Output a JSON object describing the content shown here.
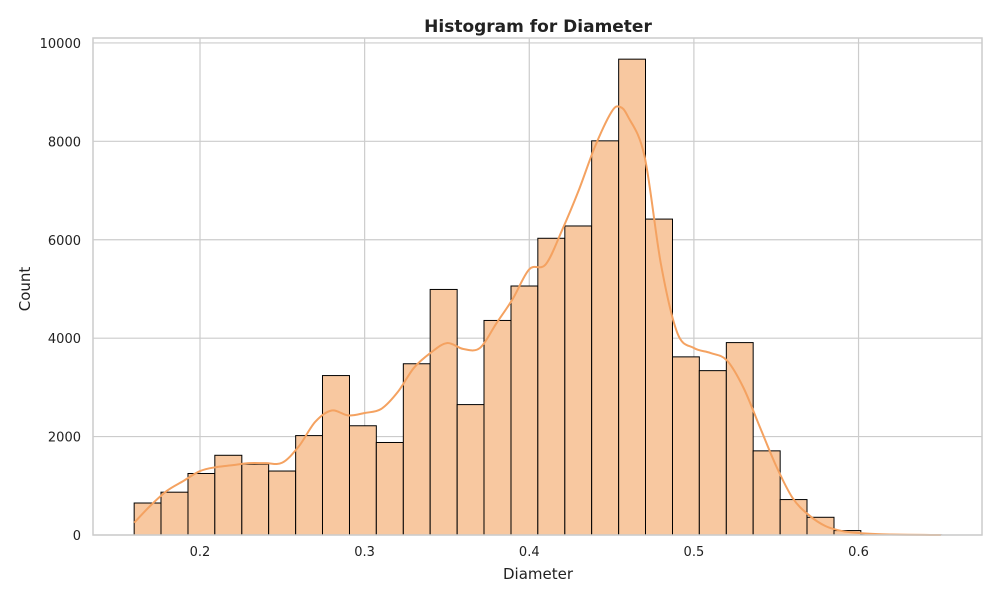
{
  "chart_data": {
    "type": "bar",
    "title": "Histogram for Diameter",
    "xlabel": "Diameter",
    "ylabel": "Count",
    "xlim": [
      0.135,
      0.675
    ],
    "ylim": [
      0,
      10100
    ],
    "x_ticks": [
      0.2,
      0.3,
      0.4,
      0.5,
      0.6
    ],
    "x_tick_labels": [
      "0.2",
      "0.3",
      "0.4",
      "0.5",
      "0.6"
    ],
    "y_ticks": [
      0,
      2000,
      4000,
      6000,
      8000,
      10000
    ],
    "y_tick_labels": [
      "0",
      "2000",
      "4000",
      "6000",
      "8000",
      "10000"
    ],
    "grid": true,
    "bins": [
      {
        "x0": 0.16,
        "x1": 0.1763,
        "count": 650
      },
      {
        "x0": 0.1763,
        "x1": 0.1927,
        "count": 870
      },
      {
        "x0": 0.1927,
        "x1": 0.209,
        "count": 1250
      },
      {
        "x0": 0.209,
        "x1": 0.2254,
        "count": 1620
      },
      {
        "x0": 0.2254,
        "x1": 0.2417,
        "count": 1440
      },
      {
        "x0": 0.2417,
        "x1": 0.2581,
        "count": 1300
      },
      {
        "x0": 0.2581,
        "x1": 0.2744,
        "count": 2020
      },
      {
        "x0": 0.2744,
        "x1": 0.2908,
        "count": 3240
      },
      {
        "x0": 0.2908,
        "x1": 0.3071,
        "count": 2220
      },
      {
        "x0": 0.3071,
        "x1": 0.3235,
        "count": 1880
      },
      {
        "x0": 0.3235,
        "x1": 0.3398,
        "count": 3480
      },
      {
        "x0": 0.3398,
        "x1": 0.3562,
        "count": 4990
      },
      {
        "x0": 0.3562,
        "x1": 0.3725,
        "count": 2650
      },
      {
        "x0": 0.3725,
        "x1": 0.3889,
        "count": 4360
      },
      {
        "x0": 0.3889,
        "x1": 0.4052,
        "count": 5060
      },
      {
        "x0": 0.4052,
        "x1": 0.4216,
        "count": 6030
      },
      {
        "x0": 0.4216,
        "x1": 0.4379,
        "count": 6280
      },
      {
        "x0": 0.4379,
        "x1": 0.4543,
        "count": 8010
      },
      {
        "x0": 0.4543,
        "x1": 0.4706,
        "count": 9670
      },
      {
        "x0": 0.4706,
        "x1": 0.487,
        "count": 6420
      },
      {
        "x0": 0.487,
        "x1": 0.5033,
        "count": 3620
      },
      {
        "x0": 0.5033,
        "x1": 0.5197,
        "count": 3340
      },
      {
        "x0": 0.5197,
        "x1": 0.536,
        "count": 3910
      },
      {
        "x0": 0.536,
        "x1": 0.5524,
        "count": 1710
      },
      {
        "x0": 0.5524,
        "x1": 0.5687,
        "count": 720
      },
      {
        "x0": 0.5687,
        "x1": 0.5851,
        "count": 360
      },
      {
        "x0": 0.5851,
        "x1": 0.6014,
        "count": 90
      },
      {
        "x0": 0.6014,
        "x1": 0.6178,
        "count": 20
      },
      {
        "x0": 0.6178,
        "x1": 0.6341,
        "count": 5
      },
      {
        "x0": 0.6341,
        "x1": 0.6505,
        "count": 2
      }
    ],
    "kde": {
      "x": [
        0.16,
        0.17,
        0.18,
        0.19,
        0.2,
        0.21,
        0.22,
        0.23,
        0.24,
        0.25,
        0.26,
        0.27,
        0.28,
        0.29,
        0.3,
        0.31,
        0.32,
        0.33,
        0.34,
        0.35,
        0.36,
        0.37,
        0.38,
        0.39,
        0.4,
        0.41,
        0.42,
        0.43,
        0.44,
        0.45,
        0.455,
        0.46,
        0.47,
        0.48,
        0.49,
        0.5,
        0.51,
        0.52,
        0.53,
        0.54,
        0.55,
        0.56,
        0.57,
        0.58,
        0.59,
        0.6,
        0.61,
        0.62,
        0.63,
        0.64,
        0.65
      ],
      "y": [
        250,
        600,
        900,
        1100,
        1300,
        1380,
        1420,
        1460,
        1460,
        1470,
        1800,
        2300,
        2530,
        2430,
        2480,
        2560,
        2900,
        3400,
        3700,
        3900,
        3780,
        3800,
        4300,
        4800,
        5400,
        5500,
        6200,
        7000,
        7900,
        8600,
        8700,
        8500,
        7700,
        5500,
        4100,
        3800,
        3700,
        3550,
        3000,
        2200,
        1400,
        750,
        400,
        180,
        80,
        40,
        20,
        10,
        5,
        2,
        0
      ]
    },
    "colors": {
      "bar_fill": "#f8c8a0",
      "bar_edge": "#000000",
      "kde_line": "#f4a261",
      "grid": "#cccccc"
    }
  }
}
